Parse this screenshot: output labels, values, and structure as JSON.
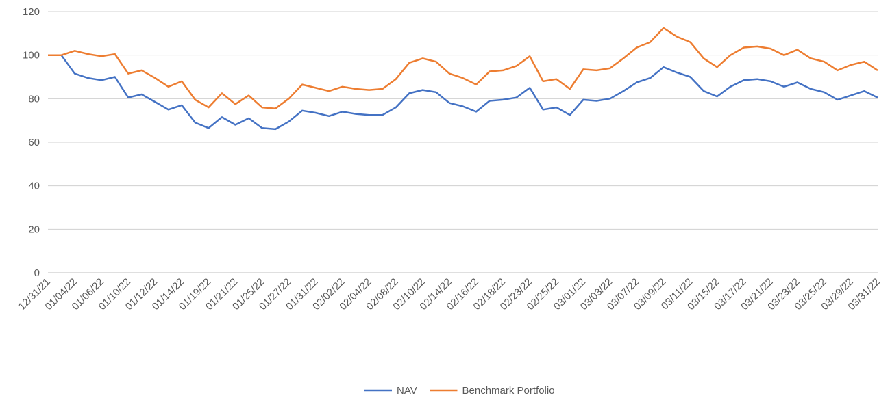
{
  "chart_data": {
    "type": "line",
    "categories": [
      "12/31/21",
      null,
      "01/04/22",
      null,
      "01/06/22",
      null,
      "01/10/22",
      null,
      "01/12/22",
      null,
      "01/14/22",
      null,
      "01/19/22",
      null,
      "01/21/22",
      null,
      "01/25/22",
      null,
      "01/27/22",
      null,
      "01/31/22",
      null,
      "02/02/22",
      null,
      "02/04/22",
      null,
      "02/08/22",
      null,
      "02/10/22",
      null,
      "02/14/22",
      null,
      "02/16/22",
      null,
      "02/18/22",
      null,
      "02/23/22",
      null,
      "02/25/22",
      null,
      "03/01/22",
      null,
      "03/03/22",
      null,
      "03/07/22",
      null,
      "03/09/22",
      null,
      "03/11/22",
      null,
      "03/15/22",
      null,
      "03/17/22",
      null,
      "03/21/22",
      null,
      "03/23/22",
      null,
      "03/25/22",
      null,
      "03/29/22",
      null,
      "03/31/22"
    ],
    "series": [
      {
        "name": "NAV",
        "color": "#4472c4",
        "values": [
          100,
          100,
          91.5,
          89.5,
          88.5,
          90,
          80.5,
          82,
          78.5,
          75,
          77,
          69,
          66.5,
          71.5,
          68,
          71,
          66.5,
          66,
          69.5,
          74.5,
          73.5,
          72,
          74,
          73,
          72.5,
          72.5,
          76,
          82.5,
          84,
          83,
          78,
          76.5,
          74,
          79,
          79.5,
          80.5,
          85,
          75,
          76,
          72.5,
          79.5,
          79,
          80,
          83.5,
          87.5,
          89.5,
          94.5,
          92,
          90,
          83.5,
          81,
          85.5,
          88.5,
          89,
          88,
          85.5,
          87.5,
          84.5,
          83,
          79.5,
          81.5,
          83.5,
          80.5
        ]
      },
      {
        "name": "Benchmark Portfolio",
        "color": "#ed7d31",
        "values": [
          100,
          100,
          102,
          100.5,
          99.5,
          100.5,
          91.5,
          93,
          89.5,
          85.5,
          88,
          79.5,
          76,
          82.5,
          77.5,
          81.5,
          76,
          75.5,
          80,
          86.5,
          85,
          83.5,
          85.5,
          84.5,
          84,
          84.5,
          89,
          96.5,
          98.5,
          97,
          91.5,
          89.5,
          86.5,
          92.5,
          93,
          95,
          99.5,
          88,
          89,
          84.5,
          93.5,
          93,
          94,
          98.5,
          103.5,
          106,
          112.5,
          108.5,
          106,
          98.5,
          94.5,
          100,
          103.5,
          104,
          103,
          100,
          102.5,
          98.5,
          97,
          93,
          95.5,
          97,
          93
        ]
      }
    ],
    "ylim": [
      0,
      120
    ],
    "yticks": [
      0,
      20,
      40,
      60,
      80,
      100,
      120
    ],
    "grid": true,
    "legend": "bottom"
  }
}
